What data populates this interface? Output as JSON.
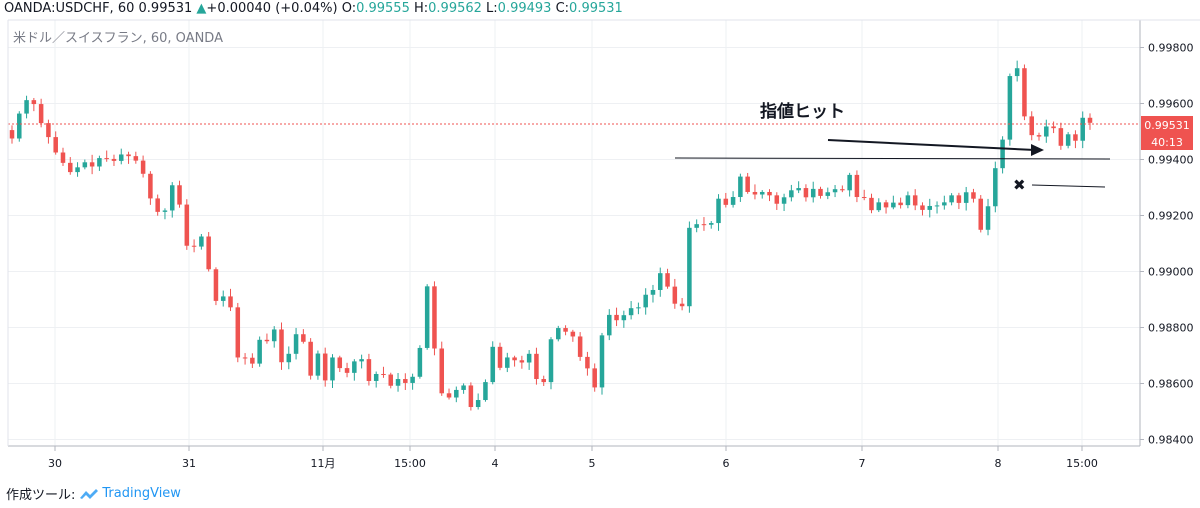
{
  "header": {
    "symbol": "OANDA:USDCHF, 60",
    "last": "0.99531",
    "arrow": "▲",
    "change": "+0.00040 (+0.04%)",
    "o_label": "O:",
    "o_val": "0.99555",
    "h_label": "H:",
    "h_val": "0.99562",
    "l_label": "L:",
    "l_val": "0.99493",
    "c_label": "C:",
    "c_val": "0.99531"
  },
  "footer": {
    "label": "作成ツール:",
    "brand": "TradingView"
  },
  "chart_data": {
    "type": "candlestick",
    "title": "米ドル／スイスフラン, 60, OANDA",
    "ylim": [
      0.9838,
      0.9992
    ],
    "y_ticks": [
      "0.99800",
      "0.99600",
      "0.99400",
      "0.99200",
      "0.99000",
      "0.98800",
      "0.98600",
      "0.98400"
    ],
    "x_ticks": [
      "30",
      "31",
      "11月",
      "15:00",
      "4",
      "5",
      "6",
      "7",
      "8",
      "15:00"
    ],
    "last_price_label": "0.99531",
    "countdown_label": "40:13",
    "last_price": 0.99531,
    "annotation": "指値ヒット",
    "colors": {
      "up": "#26a69a",
      "down": "#ef5350",
      "last_price": "#ef5350",
      "grid": "#eef0f3"
    },
    "closes": [
      0.99475,
      0.99564,
      0.99612,
      0.99598,
      0.9953,
      0.9948,
      0.99425,
      0.99388,
      0.99355,
      0.99372,
      0.9939,
      0.99375,
      0.99405,
      0.99402,
      0.99395,
      0.99418,
      0.99412,
      0.99396,
      0.99349,
      0.99261,
      0.99213,
      0.99218,
      0.99308,
      0.99239,
      0.99092,
      0.99089,
      0.99125,
      0.99008,
      0.98895,
      0.98911,
      0.98872,
      0.98693,
      0.98692,
      0.98671,
      0.98756,
      0.98751,
      0.98793,
      0.98676,
      0.98706,
      0.98776,
      0.98749,
      0.98628,
      0.98707,
      0.98611,
      0.98693,
      0.98655,
      0.98638,
      0.98679,
      0.98687,
      0.98609,
      0.98634,
      0.98632,
      0.98592,
      0.98616,
      0.98602,
      0.98624,
      0.98727,
      0.98947,
      0.98725,
      0.98565,
      0.9855,
      0.98577,
      0.98593,
      0.98516,
      0.98541,
      0.98605,
      0.98731,
      0.98656,
      0.98693,
      0.98683,
      0.98675,
      0.98706,
      0.98616,
      0.98605,
      0.98758,
      0.98798,
      0.98785,
      0.98768,
      0.98695,
      0.98654,
      0.98586,
      0.98772,
      0.98845,
      0.98826,
      0.98844,
      0.98869,
      0.98872,
      0.98917,
      0.98934,
      0.98994,
      0.98946,
      0.98885,
      0.98876,
      0.99156,
      0.99169,
      0.99167,
      0.99173,
      0.9926,
      0.99238,
      0.99266,
      0.99339,
      0.99284,
      0.99275,
      0.99284,
      0.99272,
      0.99242,
      0.99265,
      0.9929,
      0.99298,
      0.99265,
      0.99295,
      0.9927,
      0.99283,
      0.99294,
      0.9929,
      0.99345,
      0.99266,
      0.99263,
      0.99219,
      0.99247,
      0.99229,
      0.99246,
      0.99237,
      0.99272,
      0.99236,
      0.9922,
      0.99234,
      0.99236,
      0.99247,
      0.99272,
      0.99245,
      0.99283,
      0.9926,
      0.99149,
      0.99233,
      0.99369,
      0.99471,
      0.99698,
      0.99726,
      0.99554,
      0.99487,
      0.99482,
      0.99518,
      0.99512,
      0.99449,
      0.9949,
      0.99467,
      0.99549,
      0.99531
    ]
  }
}
